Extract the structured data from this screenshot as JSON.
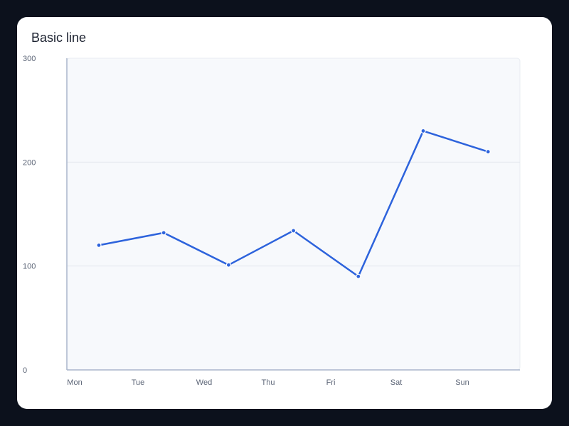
{
  "chart_data": {
    "type": "line",
    "title": "Basic line",
    "categories": [
      "Mon",
      "Tue",
      "Wed",
      "Thu",
      "Fri",
      "Sat",
      "Sun"
    ],
    "series": [
      {
        "values": [
          120,
          132,
          101,
          134,
          90,
          230,
          210
        ]
      }
    ],
    "ylim": [
      0,
      300
    ],
    "yticks": [
      0,
      100,
      200,
      300
    ],
    "grid": true,
    "colors": {
      "line": "#2d63dc",
      "plot_background": "#f7f9fc",
      "grid": "#e3e7ee",
      "axis": "#aab6cc"
    }
  }
}
